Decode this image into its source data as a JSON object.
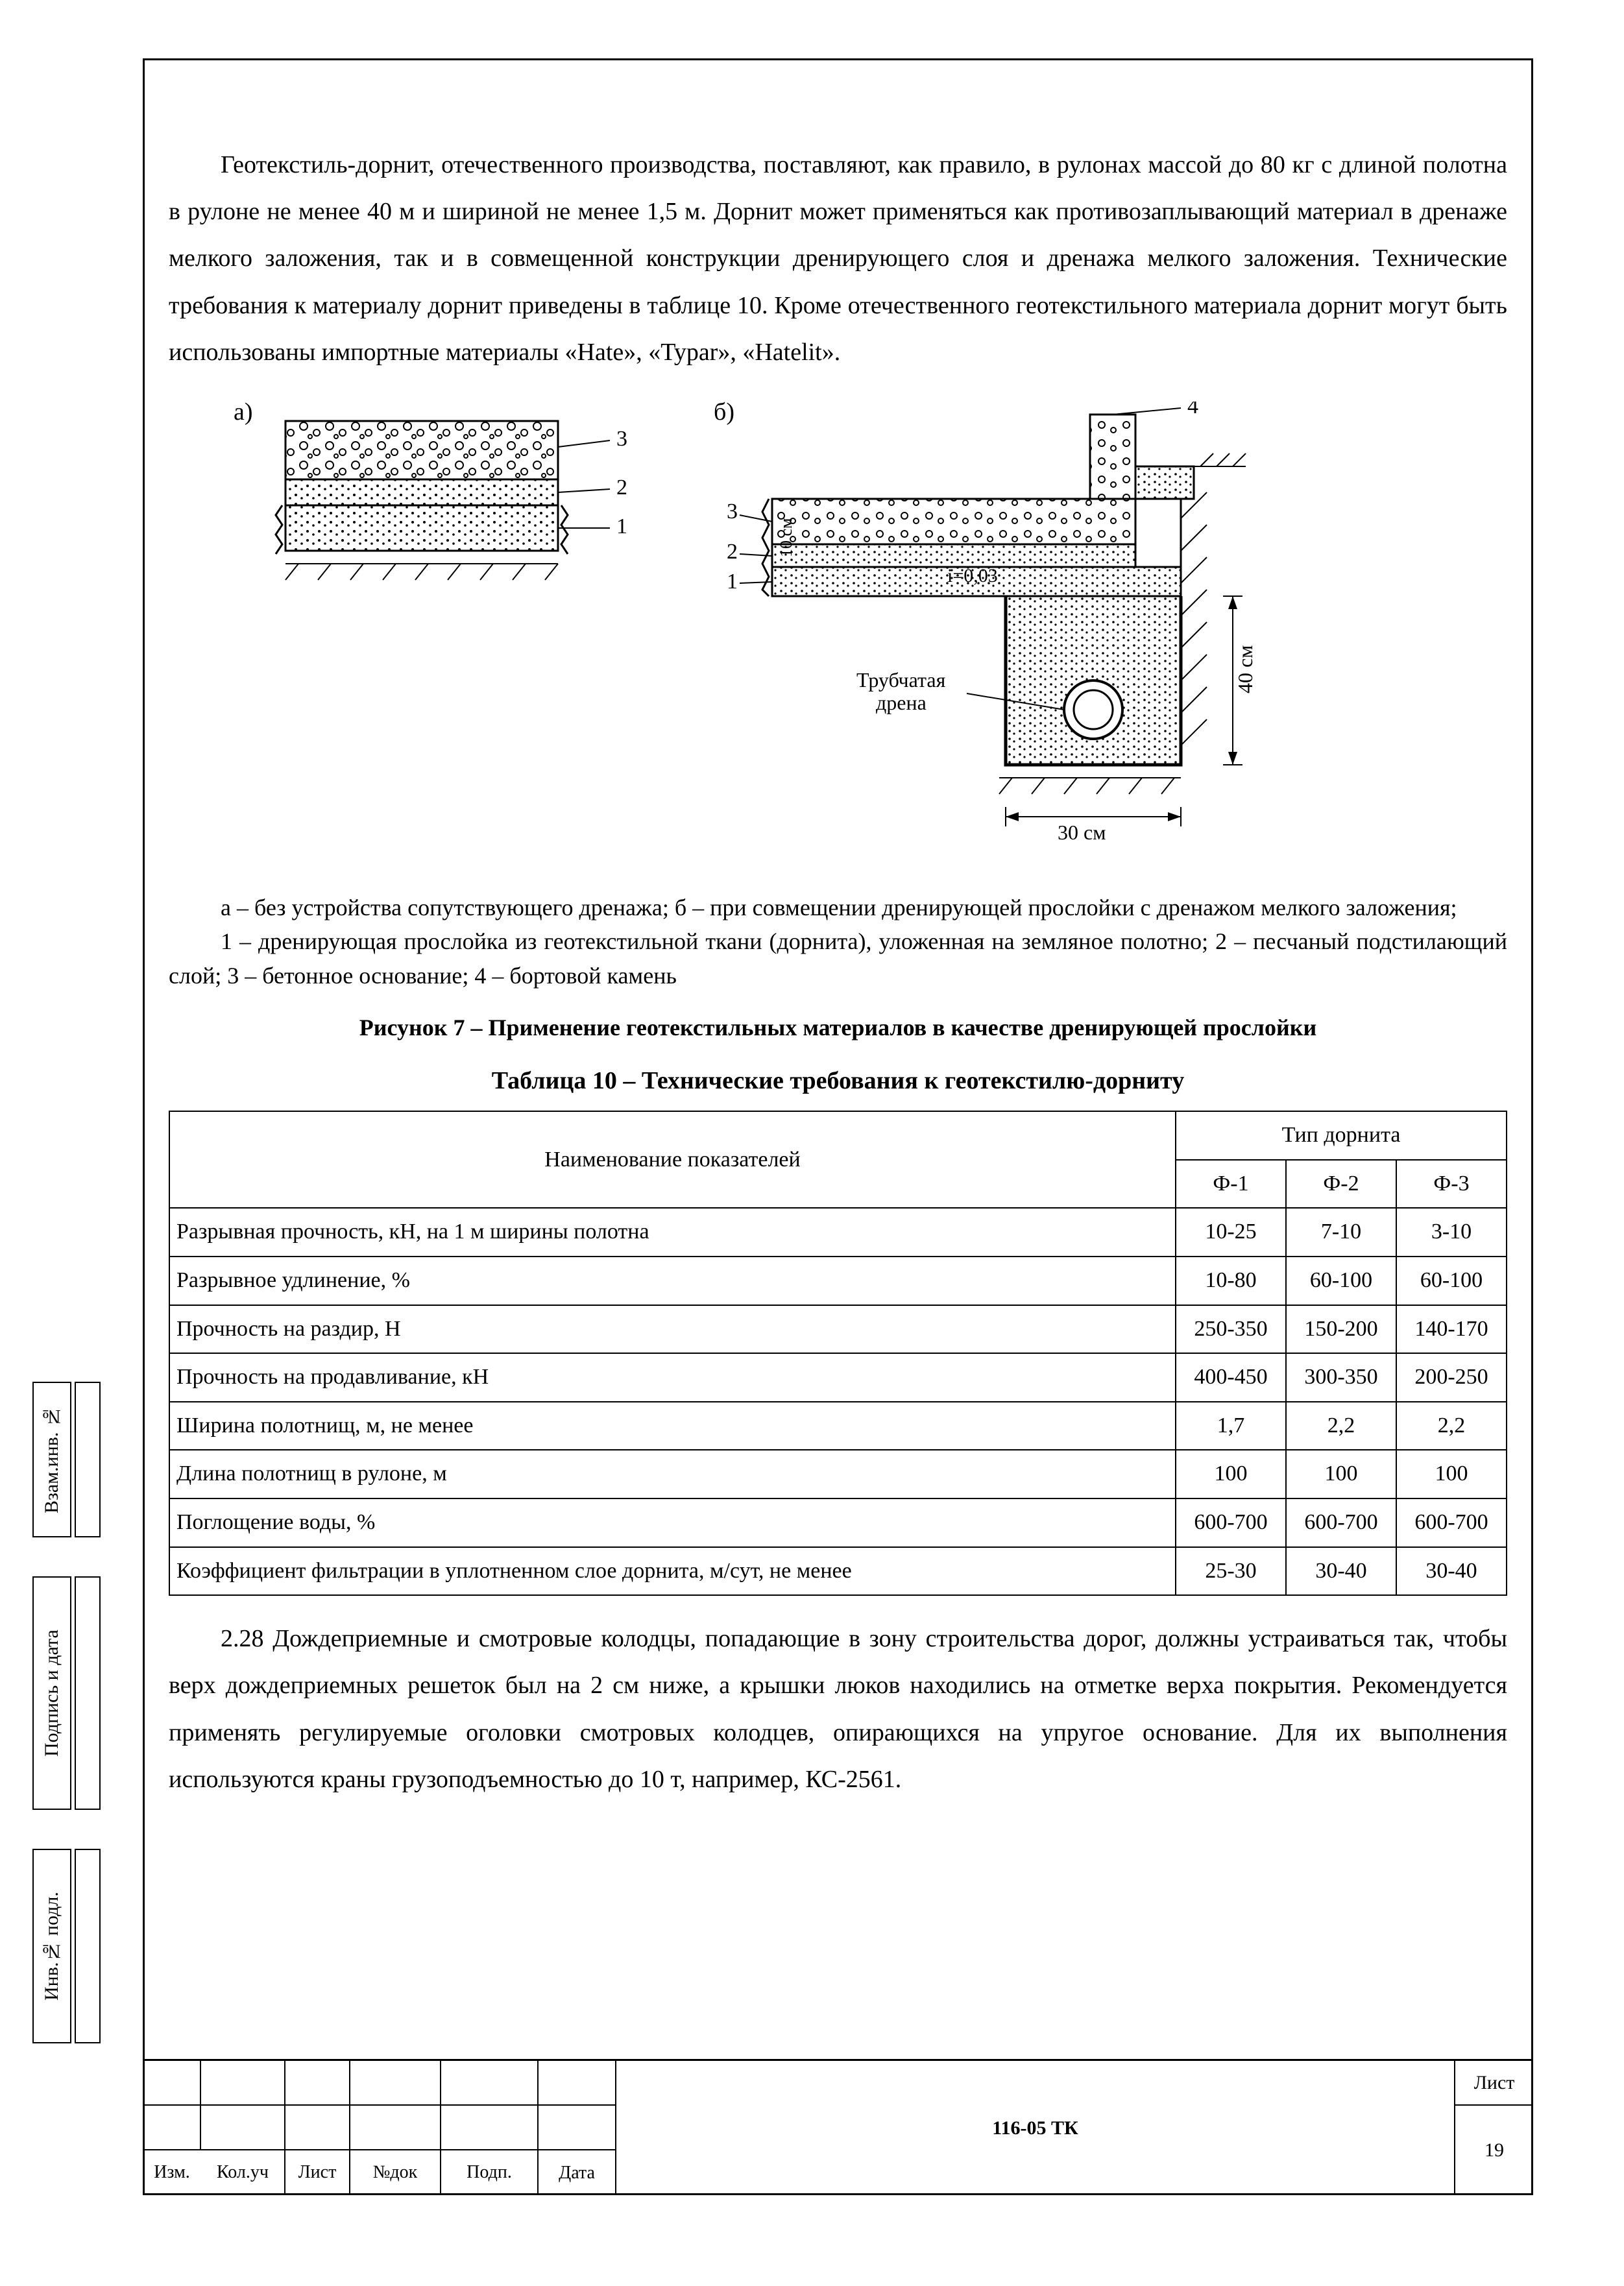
{
  "paragraph_top": "Геотекстиль-дорнит, отечественного производства, поставляют, как правило, в рулонах массой до 80 кг с длиной полотна в рулоне не менее 40 м и шириной не менее 1,5 м. Дорнит может применяться как противозаплывающий материал в дренаже мелкого заложения, так и в совмещенной конструкции дренирующего слоя и дренажа мелкого заложения. Технические требования к материалу дорнит приведены в таблице 10. Кроме отечественного геотекстильного материала дорнит могут быть использованы импортные материалы «Hate», «Typar», «Hatelit».",
  "diagram": {
    "label_a": "а)",
    "label_b": "б)",
    "callouts_a": [
      "1",
      "2",
      "3"
    ],
    "callouts_b": [
      "1",
      "2",
      "3",
      "4"
    ],
    "pipe_label": "Трубчатая\nдрена",
    "slope_label": "i=0,03",
    "dim_30": "30 см",
    "dim_40": "40 см",
    "dim_10": "10 см"
  },
  "caption_ab": "а – без устройства сопутствующего дренажа; б – при совмещении дренирующей прослойки с дренажом мелкого заложения;",
  "caption_legend": "1 – дренирующая прослойка из геотекстильной ткани (дорнита), уложенная на земляное полотно; 2 – песчаный подстилающий слой; 3 – бетонное основание; 4 – бортовой камень",
  "figure_title": "Рисунок 7 – Применение геотекстильных материалов в качестве дренирующей прослойки",
  "table_title": "Таблица 10 – Технические требования к геотекстилю-дорниту",
  "table": {
    "header_main": "Наименование показателей",
    "header_group": "Тип дорнита",
    "cols": [
      "Ф-1",
      "Ф-2",
      "Ф-3"
    ],
    "rows": [
      {
        "name": "Разрывная прочность, кН, на 1 м ширины полотна",
        "v": [
          "10-25",
          "7-10",
          "3-10"
        ]
      },
      {
        "name": "Разрывное удлинение, %",
        "v": [
          "10-80",
          "60-100",
          "60-100"
        ]
      },
      {
        "name": "Прочность на раздир, Н",
        "v": [
          "250-350",
          "150-200",
          "140-170"
        ]
      },
      {
        "name": "Прочность на продавливание, кН",
        "v": [
          "400-450",
          "300-350",
          "200-250"
        ]
      },
      {
        "name": "Ширина полотнищ, м, не менее",
        "v": [
          "1,7",
          "2,2",
          "2,2"
        ]
      },
      {
        "name": "Длина полотнищ в рулоне, м",
        "v": [
          "100",
          "100",
          "100"
        ]
      },
      {
        "name": "Поглощение воды, %",
        "v": [
          "600-700",
          "600-700",
          "600-700"
        ]
      },
      {
        "name": "Коэффициент фильтрации в уплотненном слое дорнита, м/сут, не менее",
        "v": [
          "25-30",
          "30-40",
          "30-40"
        ]
      }
    ]
  },
  "paragraph_228": "2.28 Дождеприемные и смотровые колодцы, попадающие в зону строительства дорог, должны устраиваться так, чтобы верх дождеприемных решеток был на 2 см ниже, а крышки люков находились на отметке верха покрытия. Рекомендуется применять регулируемые оголовки смотровых колодцев, опирающихся на упругое основание. Для их выполнения используются краны грузоподъемностью до 10 т, например, КС-2561.",
  "side": {
    "inv1": "Взам.инв. №",
    "podp": "Подпись и дата",
    "inv2": "Инв.№ подл."
  },
  "titleblock": {
    "doc": "116-05 ТК",
    "list_label": "Лист",
    "list_num": "19",
    "heads": [
      "Изм.",
      "Кол.уч",
      "Лист",
      "№док",
      "Подп.",
      "Дата"
    ]
  }
}
